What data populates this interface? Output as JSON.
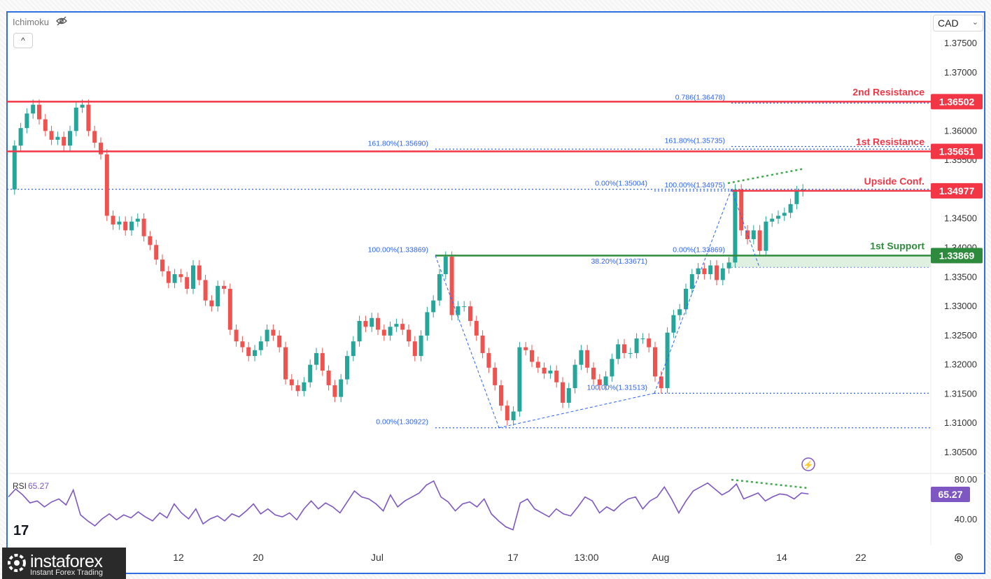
{
  "header": {
    "indicator_label": "Ichimoku",
    "collapse_label": "^",
    "currency": "CAD"
  },
  "colors": {
    "up": "#26a69a",
    "down": "#ef5350",
    "resistance": "#f23645",
    "support": "#2e8b3d",
    "fib": "#2962ff",
    "rsi": "#7e57c2"
  },
  "chart_data": {
    "type": "candlestick",
    "y_axis": {
      "ticks": [
        "1.37500",
        "1.37000",
        "1.36500",
        "1.36000",
        "1.35500",
        "1.35000",
        "1.34500",
        "1.34000",
        "1.33500",
        "1.33000",
        "1.32500",
        "1.32000",
        "1.31500",
        "1.31000",
        "1.30500"
      ],
      "range": [
        1.3025,
        1.3785
      ]
    },
    "x_axis": {
      "ticks": [
        "12",
        "20",
        "Jul",
        "17",
        "13:00",
        "Aug",
        "14",
        "22"
      ]
    },
    "levels": [
      {
        "name": "2nd Resistance",
        "value": "1.36502",
        "kind": "resistance"
      },
      {
        "name": "1st Resistance",
        "value": "1.35651",
        "kind": "resistance"
      },
      {
        "name": "Upside Conf.",
        "value": "1.34977",
        "kind": "resistance"
      },
      {
        "name": "1st Support",
        "value": "1.33869",
        "kind": "support"
      }
    ],
    "fib_labels": [
      {
        "text": "0.786(1.36478)",
        "value": 1.36478
      },
      {
        "text": "161.80%(1.35690)",
        "value": 1.3569
      },
      {
        "text": "161.80%(1.35735)",
        "value": 1.35735
      },
      {
        "text": "0.00%(1.35004)",
        "value": 1.35004
      },
      {
        "text": "100.00%(1.34975)",
        "value": 1.34975
      },
      {
        "text": "100.00%(1.33869)",
        "value": 1.33869
      },
      {
        "text": "0.00%(1.33869)",
        "value": 1.33869
      },
      {
        "text": "38.20%(1.33671)",
        "value": 1.33671
      },
      {
        "text": "100.00%(1.31513)",
        "value": 1.31513
      },
      {
        "text": "0.00%(1.30922)",
        "value": 1.30922
      }
    ],
    "price_path": [
      [
        0,
        1.35
      ],
      [
        1,
        1.3575
      ],
      [
        2,
        1.3605
      ],
      [
        3,
        1.363
      ],
      [
        4,
        1.3645
      ],
      [
        5,
        1.362
      ],
      [
        6,
        1.36
      ],
      [
        7,
        1.3585
      ],
      [
        8,
        1.359
      ],
      [
        9,
        1.3575
      ],
      [
        10,
        1.36
      ],
      [
        11,
        1.364
      ],
      [
        12,
        1.3645
      ],
      [
        13,
        1.36
      ],
      [
        14,
        1.358
      ],
      [
        15,
        1.356
      ],
      [
        16,
        1.3455
      ],
      [
        17,
        1.344
      ],
      [
        18,
        1.3445
      ],
      [
        19,
        1.343
      ],
      [
        20,
        1.3445
      ],
      [
        21,
        1.345
      ],
      [
        22,
        1.342
      ],
      [
        23,
        1.3405
      ],
      [
        24,
        1.338
      ],
      [
        25,
        1.336
      ],
      [
        26,
        1.334
      ],
      [
        27,
        1.3355
      ],
      [
        28,
        1.335
      ],
      [
        29,
        1.333
      ],
      [
        30,
        1.337
      ],
      [
        31,
        1.3345
      ],
      [
        32,
        1.331
      ],
      [
        33,
        1.33
      ],
      [
        34,
        1.3335
      ],
      [
        35,
        1.333
      ],
      [
        36,
        1.326
      ],
      [
        37,
        1.324
      ],
      [
        38,
        1.323
      ],
      [
        39,
        1.3215
      ],
      [
        40,
        1.3225
      ],
      [
        41,
        1.324
      ],
      [
        42,
        1.326
      ],
      [
        43,
        1.325
      ],
      [
        44,
        1.323
      ],
      [
        45,
        1.3175
      ],
      [
        46,
        1.3165
      ],
      [
        47,
        1.3155
      ],
      [
        48,
        1.317
      ],
      [
        49,
        1.32
      ],
      [
        50,
        1.322
      ],
      [
        51,
        1.319
      ],
      [
        52,
        1.3165
      ],
      [
        53,
        1.3145
      ],
      [
        54,
        1.3175
      ],
      [
        55,
        1.3215
      ],
      [
        56,
        1.324
      ],
      [
        57,
        1.3275
      ],
      [
        58,
        1.3265
      ],
      [
        59,
        1.328
      ],
      [
        60,
        1.326
      ],
      [
        61,
        1.325
      ],
      [
        62,
        1.3265
      ],
      [
        63,
        1.327
      ],
      [
        64,
        1.326
      ],
      [
        65,
        1.324
      ],
      [
        66,
        1.3215
      ],
      [
        67,
        1.325
      ],
      [
        68,
        1.329
      ],
      [
        69,
        1.331
      ],
      [
        70,
        1.3355
      ],
      [
        71,
        1.3385
      ],
      [
        72,
        1.3285
      ],
      [
        73,
        1.33
      ],
      [
        74,
        1.33
      ],
      [
        75,
        1.3275
      ],
      [
        76,
        1.325
      ],
      [
        77,
        1.322
      ],
      [
        78,
        1.3195
      ],
      [
        79,
        1.3165
      ],
      [
        80,
        1.313
      ],
      [
        81,
        1.3105
      ],
      [
        82,
        1.312
      ],
      [
        83,
        1.323
      ],
      [
        84,
        1.3225
      ],
      [
        85,
        1.3205
      ],
      [
        86,
        1.3195
      ],
      [
        87,
        1.3185
      ],
      [
        88,
        1.319
      ],
      [
        89,
        1.317
      ],
      [
        90,
        1.3135
      ],
      [
        91,
        1.316
      ],
      [
        92,
        1.32
      ],
      [
        93,
        1.3225
      ],
      [
        94,
        1.3195
      ],
      [
        95,
        1.3175
      ],
      [
        96,
        1.3165
      ],
      [
        97,
        1.318
      ],
      [
        98,
        1.321
      ],
      [
        99,
        1.3235
      ],
      [
        100,
        1.322
      ],
      [
        101,
        1.322
      ],
      [
        102,
        1.3245
      ],
      [
        103,
        1.3245
      ],
      [
        104,
        1.323
      ],
      [
        105,
        1.318
      ],
      [
        106,
        1.316
      ],
      [
        107,
        1.3255
      ],
      [
        108,
        1.3285
      ],
      [
        109,
        1.3295
      ],
      [
        110,
        1.333
      ],
      [
        111,
        1.3355
      ],
      [
        112,
        1.3365
      ],
      [
        113,
        1.3355
      ],
      [
        114,
        1.337
      ],
      [
        115,
        1.3345
      ],
      [
        116,
        1.3365
      ],
      [
        117,
        1.3375
      ],
      [
        118,
        1.35
      ],
      [
        119,
        1.343
      ],
      [
        120,
        1.3415
      ],
      [
        121,
        1.343
      ],
      [
        122,
        1.3395
      ],
      [
        123,
        1.3445
      ],
      [
        124,
        1.345
      ],
      [
        125,
        1.3455
      ],
      [
        126,
        1.346
      ],
      [
        127,
        1.3475
      ],
      [
        128,
        1.3497
      ],
      [
        129,
        1.35
      ]
    ],
    "rsi": {
      "label": "RSI",
      "value": "65.27",
      "ticks": [
        "80.00",
        "40.00"
      ],
      "path": [
        [
          0,
          62
        ],
        [
          1,
          70
        ],
        [
          2,
          64
        ],
        [
          3,
          56
        ],
        [
          4,
          58
        ],
        [
          5,
          52
        ],
        [
          6,
          57
        ],
        [
          7,
          60
        ],
        [
          8,
          54
        ],
        [
          9,
          69
        ],
        [
          10,
          44
        ],
        [
          11,
          38
        ],
        [
          12,
          33
        ],
        [
          13,
          40
        ],
        [
          14,
          45
        ],
        [
          15,
          39
        ],
        [
          16,
          44
        ],
        [
          17,
          41
        ],
        [
          18,
          47
        ],
        [
          19,
          42
        ],
        [
          20,
          38
        ],
        [
          21,
          46
        ],
        [
          22,
          41
        ],
        [
          23,
          55
        ],
        [
          24,
          46
        ],
        [
          25,
          40
        ],
        [
          26,
          50
        ],
        [
          27,
          35
        ],
        [
          28,
          40
        ],
        [
          29,
          43
        ],
        [
          30,
          38
        ],
        [
          31,
          45
        ],
        [
          32,
          42
        ],
        [
          33,
          48
        ],
        [
          34,
          55
        ],
        [
          35,
          45
        ],
        [
          36,
          50
        ],
        [
          37,
          44
        ],
        [
          38,
          42
        ],
        [
          39,
          46
        ],
        [
          40,
          39
        ],
        [
          41,
          50
        ],
        [
          42,
          58
        ],
        [
          43,
          50
        ],
        [
          44,
          56
        ],
        [
          45,
          52
        ],
        [
          46,
          46
        ],
        [
          47,
          57
        ],
        [
          48,
          68
        ],
        [
          49,
          62
        ],
        [
          50,
          60
        ],
        [
          51,
          55
        ],
        [
          52,
          48
        ],
        [
          53,
          64
        ],
        [
          54,
          52
        ],
        [
          55,
          58
        ],
        [
          56,
          62
        ],
        [
          57,
          66
        ],
        [
          58,
          74
        ],
        [
          59,
          78
        ],
        [
          60,
          62
        ],
        [
          61,
          57
        ],
        [
          62,
          48
        ],
        [
          63,
          55
        ],
        [
          64,
          57
        ],
        [
          65,
          52
        ],
        [
          66,
          60
        ],
        [
          67,
          45
        ],
        [
          68,
          38
        ],
        [
          69,
          32
        ],
        [
          70,
          29
        ],
        [
          71,
          56
        ],
        [
          72,
          60
        ],
        [
          73,
          50
        ],
        [
          74,
          46
        ],
        [
          75,
          42
        ],
        [
          76,
          50
        ],
        [
          77,
          45
        ],
        [
          78,
          43
        ],
        [
          79,
          52
        ],
        [
          80,
          62
        ],
        [
          81,
          58
        ],
        [
          82,
          46
        ],
        [
          83,
          52
        ],
        [
          84,
          48
        ],
        [
          85,
          55
        ],
        [
          86,
          60
        ],
        [
          87,
          62
        ],
        [
          88,
          50
        ],
        [
          89,
          58
        ],
        [
          90,
          62
        ],
        [
          91,
          72
        ],
        [
          92,
          60
        ],
        [
          93,
          46
        ],
        [
          94,
          58
        ],
        [
          95,
          68
        ],
        [
          96,
          72
        ],
        [
          97,
          76
        ],
        [
          98,
          70
        ],
        [
          99,
          64
        ],
        [
          100,
          68
        ],
        [
          101,
          75
        ],
        [
          102,
          60
        ],
        [
          103,
          63
        ],
        [
          104,
          66
        ],
        [
          105,
          58
        ],
        [
          106,
          62
        ],
        [
          107,
          65
        ],
        [
          108,
          64
        ],
        [
          109,
          60
        ],
        [
          110,
          66
        ],
        [
          111,
          65
        ]
      ]
    },
    "legend": []
  },
  "branding": {
    "logo_name": "instaforex",
    "logo_tagline": "Instant Forex Trading"
  }
}
